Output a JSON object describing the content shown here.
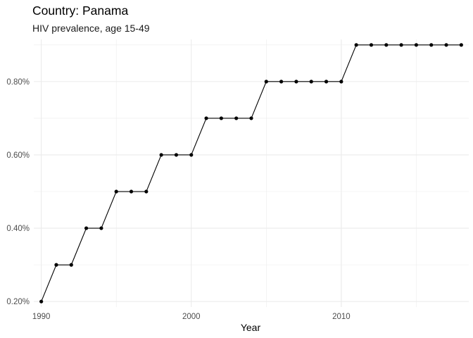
{
  "chart_data": {
    "type": "line",
    "title": "Country: Panama",
    "subtitle": "HIV prevalence, age 15-49",
    "xlabel": "Year",
    "ylabel": "",
    "x": [
      1990,
      1991,
      1992,
      1993,
      1994,
      1995,
      1996,
      1997,
      1998,
      1999,
      2000,
      2001,
      2002,
      2003,
      2004,
      2005,
      2006,
      2007,
      2008,
      2009,
      2010,
      2011,
      2012,
      2013,
      2014,
      2015,
      2016,
      2017,
      2018
    ],
    "series": [
      {
        "values": [
          0.2,
          0.3,
          0.3,
          0.4,
          0.4,
          0.5,
          0.5,
          0.5,
          0.6,
          0.6,
          0.6,
          0.7,
          0.7,
          0.7,
          0.7,
          0.8,
          0.8,
          0.8,
          0.8,
          0.8,
          0.8,
          0.9,
          0.9,
          0.9,
          0.9,
          0.9,
          0.9,
          0.9,
          0.9
        ]
      }
    ],
    "xlim": [
      1989.5,
      2018.5
    ],
    "ylim": [
      0.185,
      0.915
    ],
    "x_ticks": [
      "1990",
      "2000",
      "2010"
    ],
    "y_ticks": [
      "0.20%",
      "0.40%",
      "0.60%",
      "0.80%"
    ],
    "grid": true,
    "line_color": "#000000",
    "point_color": "#000000",
    "grid_color": "#ebebeb"
  }
}
